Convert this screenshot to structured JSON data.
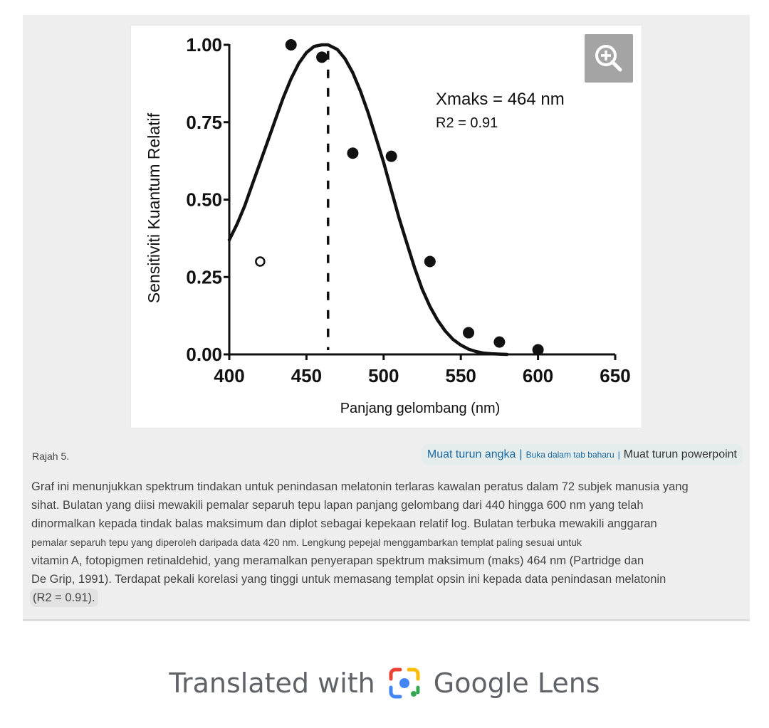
{
  "figure": {
    "zoom_button": "zoom-in-icon",
    "stat_xmax": "Xmaks = 464 nm",
    "stat_r2": "R2 = 0.91"
  },
  "chart_data": {
    "type": "scatter",
    "xlabel": "Panjang gelombang (nm)",
    "ylabel": "Sensitiviti Kuantum Relatif",
    "xlim": [
      400,
      650
    ],
    "ylim": [
      0,
      1
    ],
    "x_ticks": [
      "400",
      "450",
      "500",
      "550",
      "600",
      "650"
    ],
    "y_ticks": [
      "0.00",
      "0.25",
      "0.50",
      "0.75",
      "1.00"
    ],
    "peak_line_x": 464,
    "series": [
      {
        "marker": "filled",
        "points": [
          {
            "x": 440,
            "y": 1.0
          },
          {
            "x": 460,
            "y": 0.96
          },
          {
            "x": 480,
            "y": 0.65
          },
          {
            "x": 505,
            "y": 0.64
          },
          {
            "x": 530,
            "y": 0.3
          },
          {
            "x": 555,
            "y": 0.07
          },
          {
            "x": 575,
            "y": 0.04
          },
          {
            "x": 600,
            "y": 0.015
          }
        ]
      },
      {
        "marker": "open",
        "points": [
          {
            "x": 420,
            "y": 0.3
          }
        ]
      }
    ],
    "fit_curve": {
      "x": [
        400,
        405,
        410,
        415,
        420,
        425,
        430,
        435,
        440,
        445,
        450,
        455,
        460,
        464,
        470,
        475,
        480,
        485,
        490,
        495,
        500,
        505,
        510,
        515,
        520,
        525,
        530,
        535,
        540,
        545,
        550,
        555,
        560,
        565,
        570,
        575,
        580
      ],
      "y": [
        0.37,
        0.42,
        0.48,
        0.55,
        0.62,
        0.69,
        0.76,
        0.83,
        0.89,
        0.94,
        0.975,
        0.995,
        1.0,
        1.0,
        0.985,
        0.955,
        0.91,
        0.85,
        0.78,
        0.7,
        0.62,
        0.53,
        0.44,
        0.36,
        0.28,
        0.21,
        0.155,
        0.11,
        0.075,
        0.048,
        0.03,
        0.017,
        0.009,
        0.004,
        0.002,
        0.001,
        0.0
      ]
    }
  },
  "caption": {
    "label": "Rajah 5.",
    "link_download_figure": "Muat turun angka",
    "sep1": "|",
    "link_open_tab": "Buka dalam tab baharu",
    "sep2": "|",
    "link_powerpoint": "Muat turun powerpoint",
    "lines": [
      "Graf ini menunjukkan spektrum tindakan untuk penindasan melatonin terlaras kawalan peratus dalam 72 subjek manusia yang",
      "sihat. Bulatan yang diisi mewakili pemalar separuh tepu lapan panjang gelombang dari 440 hingga 600 nm yang telah",
      "dinormalkan kepada tindak balas maksimum dan diplot sebagai kepekaan relatif log. Bulatan terbuka mewakili anggaran",
      "pemalar separuh tepu yang diperoleh daripada data 420 nm. Lengkung pepejal menggambarkan templat paling sesuai untuk",
      "vitamin A, fotopigmen retinaldehid, yang meramalkan penyerapan spektrum maksimum (maks) 464 nm (Partridge dan",
      "De Grip, 1991). Terdapat pekali korelasi yang tinggi untuk memasang templat opsin ini kepada data penindasan melatonin",
      "(R2 = 0.91)."
    ]
  },
  "footer": {
    "translated_text": "Translated with",
    "brand_text": "Google Lens",
    "logo_icon": "google-lens-icon",
    "colors": {
      "blue": "#4285F4",
      "red": "#EA4335",
      "yellow": "#FBBC05",
      "green": "#34A853"
    }
  }
}
